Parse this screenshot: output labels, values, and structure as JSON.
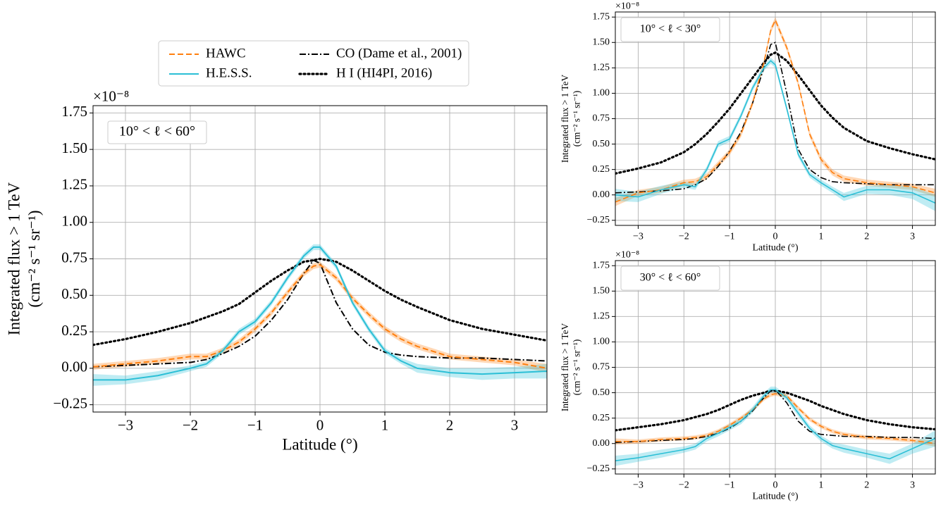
{
  "chart_data": [
    {
      "type": "line",
      "annotation": "10° < ℓ < 60°",
      "multiplier": "×10⁻⁸",
      "x_label": "Latitude (°)",
      "y_label": "Integrated flux > 1 TeV",
      "y_label_unit": "(cm⁻² s⁻¹ sr⁻¹)",
      "legend": "outside top",
      "grid": true,
      "xlim": [
        -3.5,
        3.5
      ],
      "ylim": [
        -0.3,
        1.8
      ],
      "xticks": [
        {
          "value": -3,
          "label": "−3"
        },
        {
          "value": -2,
          "label": "−2"
        },
        {
          "value": -1,
          "label": "−1"
        },
        0,
        1,
        2,
        3
      ],
      "yticks": [
        {
          "value": -0.25,
          "label": "−0.25"
        },
        {
          "value": 0,
          "label": "0.00"
        },
        {
          "value": 0.25,
          "label": "0.25"
        },
        {
          "value": 0.5,
          "label": "0.50"
        },
        {
          "value": 0.75,
          "label": "0.75"
        },
        {
          "value": 1,
          "label": "1.00"
        },
        {
          "value": 1.25,
          "label": "1.25"
        },
        {
          "value": 1.5,
          "label": "1.50"
        },
        {
          "value": 1.75,
          "label": "1.75"
        }
      ],
      "x": [
        -3.5,
        -3,
        -2.5,
        -2,
        -1.75,
        -1.5,
        -1.25,
        -1,
        -0.75,
        -0.5,
        -0.25,
        -0.1,
        0,
        0.25,
        0.5,
        0.75,
        1,
        1.25,
        1.5,
        2,
        2.5,
        3,
        3.5
      ],
      "series": [
        {
          "name": "HAWC",
          "color": "#ff7f0e",
          "dash": "dashed",
          "values": [
            0.01,
            0.03,
            0.05,
            0.08,
            0.08,
            0.12,
            0.18,
            0.27,
            0.38,
            0.52,
            0.65,
            0.7,
            0.71,
            0.62,
            0.48,
            0.37,
            0.27,
            0.2,
            0.15,
            0.08,
            0.06,
            0.04,
            0.0
          ],
          "errors": [
            0.02,
            0.02,
            0.02,
            0.02,
            0.02,
            0.02,
            0.02,
            0.02,
            0.02,
            0.02,
            0.02,
            0.02,
            0.02,
            0.02,
            0.02,
            0.02,
            0.02,
            0.02,
            0.02,
            0.02,
            0.02,
            0.02,
            0.03
          ]
        },
        {
          "name": "H.E.S.S.",
          "color": "#2bbfd6",
          "dash": "solid",
          "values": [
            -0.08,
            -0.08,
            -0.05,
            0.0,
            0.03,
            0.12,
            0.25,
            0.32,
            0.45,
            0.62,
            0.77,
            0.83,
            0.83,
            0.7,
            0.45,
            0.27,
            0.12,
            0.05,
            0.0,
            -0.03,
            -0.04,
            -0.03,
            -0.02
          ],
          "errors": [
            0.04,
            0.03,
            0.03,
            0.02,
            0.02,
            0.02,
            0.02,
            0.02,
            0.02,
            0.02,
            0.02,
            0.02,
            0.02,
            0.02,
            0.02,
            0.02,
            0.02,
            0.02,
            0.03,
            0.03,
            0.04,
            0.04,
            0.05
          ]
        },
        {
          "name": "CO (Dame et al., 2001)",
          "color": "#000000",
          "dash": "dashdot",
          "values": [
            0.01,
            0.02,
            0.03,
            0.04,
            0.06,
            0.1,
            0.15,
            0.22,
            0.33,
            0.47,
            0.65,
            0.74,
            0.72,
            0.45,
            0.27,
            0.16,
            0.11,
            0.09,
            0.08,
            0.07,
            0.07,
            0.06,
            0.05
          ]
        },
        {
          "name": "H I (HI4PI, 2016)",
          "color": "#000000",
          "dash": "dotted",
          "values": [
            0.16,
            0.2,
            0.25,
            0.31,
            0.35,
            0.39,
            0.44,
            0.52,
            0.6,
            0.67,
            0.73,
            0.74,
            0.75,
            0.73,
            0.67,
            0.6,
            0.53,
            0.47,
            0.42,
            0.33,
            0.27,
            0.23,
            0.19
          ]
        }
      ]
    },
    {
      "type": "line",
      "annotation": "10° < ℓ < 30°",
      "multiplier": "×10⁻⁸",
      "x_label": "Latitude (°)",
      "y_label": "Integrated flux > 1 TeV",
      "y_label_unit": "(cm⁻² s⁻¹ sr⁻¹)",
      "grid": true,
      "xlim": [
        -3.5,
        3.5
      ],
      "ylim": [
        -0.3,
        1.8
      ],
      "xticks": [
        {
          "value": -3,
          "label": "−3"
        },
        {
          "value": -2,
          "label": "−2"
        },
        {
          "value": -1,
          "label": "−1"
        },
        0,
        1,
        2,
        3
      ],
      "yticks": [
        {
          "value": -0.25,
          "label": "−0.25"
        },
        {
          "value": 0,
          "label": "0.00"
        },
        {
          "value": 0.25,
          "label": "0.25"
        },
        {
          "value": 0.5,
          "label": "0.50"
        },
        {
          "value": 0.75,
          "label": "0.75"
        },
        {
          "value": 1,
          "label": "1.00"
        },
        {
          "value": 1.25,
          "label": "1.25"
        },
        {
          "value": 1.5,
          "label": "1.50"
        },
        {
          "value": 1.75,
          "label": "1.75"
        }
      ],
      "x": [
        -3.5,
        -3,
        -2.5,
        -2,
        -1.75,
        -1.5,
        -1.25,
        -1,
        -0.75,
        -0.5,
        -0.25,
        -0.1,
        0,
        0.25,
        0.5,
        0.75,
        1,
        1.25,
        1.5,
        2,
        2.5,
        3,
        3.5
      ],
      "series": [
        {
          "color": "#ff7f0e",
          "dash": "dashed",
          "values": [
            -0.07,
            0.02,
            0.05,
            0.12,
            0.13,
            0.18,
            0.3,
            0.42,
            0.6,
            0.9,
            1.3,
            1.62,
            1.72,
            1.45,
            1.1,
            0.6,
            0.35,
            0.22,
            0.16,
            0.12,
            0.1,
            0.08,
            0.02
          ],
          "errors": [
            0.04,
            0.03,
            0.03,
            0.03,
            0.03,
            0.03,
            0.03,
            0.03,
            0.03,
            0.03,
            0.03,
            0.03,
            0.03,
            0.03,
            0.03,
            0.03,
            0.03,
            0.03,
            0.03,
            0.03,
            0.03,
            0.03,
            0.04
          ]
        },
        {
          "color": "#2bbfd6",
          "dash": "solid",
          "values": [
            0.0,
            -0.02,
            0.05,
            0.1,
            0.08,
            0.25,
            0.5,
            0.55,
            0.78,
            1.05,
            1.25,
            1.32,
            1.28,
            0.85,
            0.4,
            0.2,
            0.12,
            0.05,
            -0.02,
            0.05,
            0.05,
            0.02,
            -0.08
          ],
          "errors": [
            0.06,
            0.05,
            0.04,
            0.03,
            0.03,
            0.03,
            0.03,
            0.03,
            0.03,
            0.03,
            0.03,
            0.03,
            0.03,
            0.03,
            0.03,
            0.03,
            0.03,
            0.03,
            0.04,
            0.04,
            0.05,
            0.06,
            0.08
          ]
        },
        {
          "color": "#000000",
          "dash": "dashdot",
          "values": [
            0.02,
            0.03,
            0.04,
            0.06,
            0.1,
            0.16,
            0.28,
            0.43,
            0.62,
            0.9,
            1.25,
            1.48,
            1.5,
            1.0,
            0.45,
            0.25,
            0.17,
            0.13,
            0.12,
            0.11,
            0.1,
            0.1,
            0.1
          ]
        },
        {
          "color": "#000000",
          "dash": "dotted",
          "values": [
            0.21,
            0.26,
            0.32,
            0.42,
            0.5,
            0.6,
            0.72,
            0.85,
            1.0,
            1.15,
            1.3,
            1.38,
            1.4,
            1.32,
            1.18,
            1.03,
            0.88,
            0.76,
            0.66,
            0.53,
            0.46,
            0.4,
            0.35
          ]
        }
      ]
    },
    {
      "type": "line",
      "annotation": "30° < ℓ < 60°",
      "multiplier": "×10⁻⁸",
      "x_label": "Latitude (°)",
      "y_label": "Integrated flux > 1 TeV",
      "y_label_unit": "(cm⁻² s⁻¹ sr⁻¹)",
      "grid": true,
      "xlim": [
        -3.5,
        3.5
      ],
      "ylim": [
        -0.3,
        1.8
      ],
      "xticks": [
        {
          "value": -3,
          "label": "−3"
        },
        {
          "value": -2,
          "label": "−2"
        },
        {
          "value": -1,
          "label": "−1"
        },
        0,
        1,
        2,
        3
      ],
      "yticks": [
        {
          "value": -0.25,
          "label": "−0.25"
        },
        {
          "value": 0,
          "label": "0.00"
        },
        {
          "value": 0.25,
          "label": "0.25"
        },
        {
          "value": 0.5,
          "label": "0.50"
        },
        {
          "value": 0.75,
          "label": "0.75"
        },
        {
          "value": 1,
          "label": "1.00"
        },
        {
          "value": 1.25,
          "label": "1.25"
        },
        {
          "value": 1.5,
          "label": "1.50"
        },
        {
          "value": 1.75,
          "label": "1.75"
        }
      ],
      "x": [
        -3.5,
        -3,
        -2.5,
        -2,
        -1.75,
        -1.5,
        -1.25,
        -1,
        -0.75,
        -0.5,
        -0.25,
        -0.1,
        0,
        0.25,
        0.5,
        0.75,
        1,
        1.25,
        1.5,
        2,
        2.5,
        3,
        3.5
      ],
      "series": [
        {
          "color": "#ff7f0e",
          "dash": "dashed",
          "values": [
            0.02,
            0.02,
            0.04,
            0.05,
            0.06,
            0.08,
            0.12,
            0.18,
            0.25,
            0.33,
            0.44,
            0.48,
            0.49,
            0.47,
            0.35,
            0.24,
            0.17,
            0.12,
            0.09,
            0.06,
            0.05,
            0.03,
            0.0
          ],
          "errors": [
            0.03,
            0.02,
            0.02,
            0.02,
            0.02,
            0.02,
            0.02,
            0.02,
            0.02,
            0.02,
            0.02,
            0.02,
            0.02,
            0.02,
            0.02,
            0.02,
            0.02,
            0.02,
            0.02,
            0.02,
            0.02,
            0.02,
            0.03
          ]
        },
        {
          "color": "#2bbfd6",
          "dash": "solid",
          "values": [
            -0.17,
            -0.14,
            -0.1,
            -0.06,
            -0.03,
            0.05,
            0.1,
            0.16,
            0.22,
            0.33,
            0.47,
            0.53,
            0.53,
            0.45,
            0.3,
            0.15,
            0.05,
            -0.02,
            -0.05,
            -0.1,
            -0.15,
            -0.05,
            0.05
          ],
          "errors": [
            0.05,
            0.04,
            0.04,
            0.03,
            0.03,
            0.03,
            0.03,
            0.03,
            0.03,
            0.03,
            0.03,
            0.03,
            0.03,
            0.03,
            0.03,
            0.03,
            0.03,
            0.03,
            0.04,
            0.04,
            0.05,
            0.05,
            0.08
          ]
        },
        {
          "color": "#000000",
          "dash": "dashdot",
          "values": [
            0.01,
            0.02,
            0.03,
            0.04,
            0.05,
            0.07,
            0.1,
            0.15,
            0.22,
            0.32,
            0.45,
            0.52,
            0.53,
            0.4,
            0.22,
            0.12,
            0.09,
            0.08,
            0.07,
            0.07,
            0.06,
            0.06,
            0.05
          ]
        },
        {
          "color": "#000000",
          "dash": "dotted",
          "values": [
            0.13,
            0.16,
            0.19,
            0.23,
            0.26,
            0.29,
            0.33,
            0.38,
            0.43,
            0.47,
            0.5,
            0.52,
            0.52,
            0.5,
            0.46,
            0.42,
            0.37,
            0.33,
            0.29,
            0.23,
            0.19,
            0.16,
            0.14
          ]
        }
      ]
    }
  ]
}
